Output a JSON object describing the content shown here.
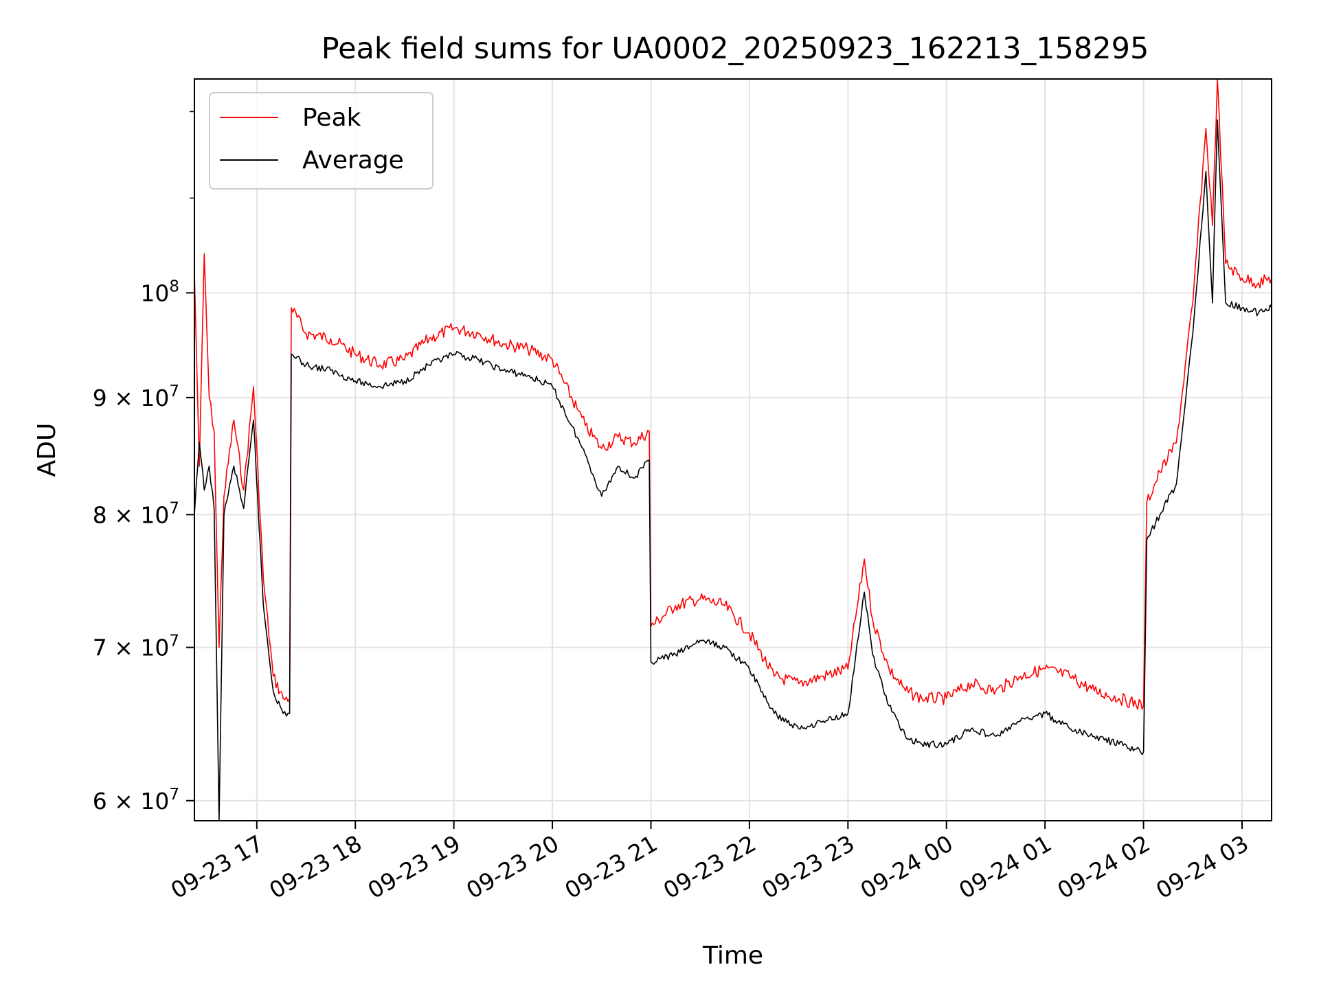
{
  "chart_data": {
    "type": "line",
    "title": "Peak field sums for UA0002_20250923_162213_158295",
    "xlabel": "Time",
    "ylabel": "ADU",
    "yscale": "log",
    "xlim": [
      "2025-09-23 16:22",
      "2025-09-24 03:18"
    ],
    "ylim": [
      58800000,
      124000000
    ],
    "grid": true,
    "legend_position": "upper-left",
    "x_ticks": [
      "09-23 17",
      "09-23 18",
      "09-23 19",
      "09-23 20",
      "09-23 21",
      "09-23 22",
      "09-23 23",
      "09-24 00",
      "09-24 01",
      "09-24 02",
      "09-24 03"
    ],
    "x_tick_values": [
      "2025-09-23 17:00",
      "2025-09-23 18:00",
      "2025-09-23 19:00",
      "2025-09-23 20:00",
      "2025-09-23 21:00",
      "2025-09-23 22:00",
      "2025-09-23 23:00",
      "2025-09-24 00:00",
      "2025-09-24 01:00",
      "2025-09-24 02:00",
      "2025-09-24 03:00"
    ],
    "y_ticks": [
      {
        "value": 60000000,
        "mant": "6",
        "sup": "7"
      },
      {
        "value": 70000000,
        "mant": "7",
        "sup": "7"
      },
      {
        "value": 80000000,
        "mant": "8",
        "sup": "7"
      },
      {
        "value": 90000000,
        "mant": "9",
        "sup": "7"
      },
      {
        "value": 100000000,
        "mant": "",
        "sup": "8"
      }
    ],
    "series": [
      {
        "name": "Peak",
        "color": "#ff0000",
        "x": [
          "2025-09-23 16:22",
          "2025-09-23 16:25",
          "2025-09-23 16:28",
          "2025-09-23 16:31",
          "2025-09-23 16:34",
          "2025-09-23 16:37",
          "2025-09-23 16:40",
          "2025-09-23 16:46",
          "2025-09-23 16:52",
          "2025-09-23 16:58",
          "2025-09-23 17:04",
          "2025-09-23 17:10",
          "2025-09-23 17:16",
          "2025-09-23 17:20",
          "2025-09-23 17:21",
          "2025-09-23 17:30",
          "2025-09-23 17:45",
          "2025-09-23 18:00",
          "2025-09-23 18:15",
          "2025-09-23 18:30",
          "2025-09-23 18:45",
          "2025-09-23 19:00",
          "2025-09-23 19:15",
          "2025-09-23 19:30",
          "2025-09-23 19:45",
          "2025-09-23 20:00",
          "2025-09-23 20:15",
          "2025-09-23 20:20",
          "2025-09-23 20:30",
          "2025-09-23 20:40",
          "2025-09-23 20:50",
          "2025-09-23 20:59",
          "2025-09-23 21:00",
          "2025-09-23 21:15",
          "2025-09-23 21:30",
          "2025-09-23 21:45",
          "2025-09-23 22:00",
          "2025-09-23 22:15",
          "2025-09-23 22:30",
          "2025-09-23 22:45",
          "2025-09-23 23:00",
          "2025-09-23 23:10",
          "2025-09-23 23:15",
          "2025-09-23 23:25",
          "2025-09-23 23:35",
          "2025-09-23 23:45",
          "2025-09-24 00:00",
          "2025-09-24 00:15",
          "2025-09-24 00:30",
          "2025-09-24 00:45",
          "2025-09-24 01:00",
          "2025-09-24 01:15",
          "2025-09-24 01:30",
          "2025-09-24 01:45",
          "2025-09-24 02:00",
          "2025-09-24 02:02",
          "2025-09-24 02:10",
          "2025-09-24 02:20",
          "2025-09-24 02:30",
          "2025-09-24 02:38",
          "2025-09-24 02:42",
          "2025-09-24 02:45",
          "2025-09-24 02:50",
          "2025-09-24 03:00",
          "2025-09-24 03:10",
          "2025-09-24 03:18"
        ],
        "y": [
          102000000,
          84000000,
          104000000,
          90000000,
          87000000,
          70000000,
          81500000,
          88000000,
          82000000,
          91000000,
          75000000,
          68000000,
          66500000,
          66500000,
          98500000,
          96000000,
          95500000,
          94000000,
          93000000,
          93500000,
          95500000,
          96500000,
          96000000,
          95000000,
          94500000,
          93500000,
          89000000,
          87500000,
          85500000,
          86500000,
          86000000,
          87000000,
          71500000,
          73000000,
          73500000,
          73000000,
          71000000,
          68000000,
          67500000,
          68000000,
          68500000,
          76500000,
          72000000,
          68500000,
          67000000,
          66500000,
          66500000,
          67500000,
          67000000,
          68000000,
          68500000,
          68000000,
          67000000,
          66500000,
          66000000,
          81000000,
          83500000,
          86000000,
          99000000,
          118000000,
          107000000,
          124000000,
          103000000,
          101500000,
          101000000,
          101500000
        ]
      },
      {
        "name": "Average",
        "color": "#000000",
        "x": [
          "2025-09-23 16:22",
          "2025-09-23 16:25",
          "2025-09-23 16:28",
          "2025-09-23 16:31",
          "2025-09-23 16:34",
          "2025-09-23 16:37",
          "2025-09-23 16:40",
          "2025-09-23 16:46",
          "2025-09-23 16:52",
          "2025-09-23 16:58",
          "2025-09-23 17:04",
          "2025-09-23 17:10",
          "2025-09-23 17:16",
          "2025-09-23 17:20",
          "2025-09-23 17:21",
          "2025-09-23 17:30",
          "2025-09-23 17:45",
          "2025-09-23 18:00",
          "2025-09-23 18:15",
          "2025-09-23 18:30",
          "2025-09-23 18:45",
          "2025-09-23 19:00",
          "2025-09-23 19:15",
          "2025-09-23 19:30",
          "2025-09-23 19:45",
          "2025-09-23 20:00",
          "2025-09-23 20:15",
          "2025-09-23 20:20",
          "2025-09-23 20:30",
          "2025-09-23 20:40",
          "2025-09-23 20:50",
          "2025-09-23 20:59",
          "2025-09-23 21:00",
          "2025-09-23 21:15",
          "2025-09-23 21:30",
          "2025-09-23 21:45",
          "2025-09-23 22:00",
          "2025-09-23 22:15",
          "2025-09-23 22:30",
          "2025-09-23 22:45",
          "2025-09-23 23:00",
          "2025-09-23 23:10",
          "2025-09-23 23:15",
          "2025-09-23 23:25",
          "2025-09-23 23:35",
          "2025-09-23 23:45",
          "2025-09-24 00:00",
          "2025-09-24 00:15",
          "2025-09-24 00:30",
          "2025-09-24 00:45",
          "2025-09-24 01:00",
          "2025-09-24 01:15",
          "2025-09-24 01:30",
          "2025-09-24 01:45",
          "2025-09-24 02:00",
          "2025-09-24 02:02",
          "2025-09-24 02:10",
          "2025-09-24 02:20",
          "2025-09-24 02:30",
          "2025-09-24 02:38",
          "2025-09-24 02:42",
          "2025-09-24 02:45",
          "2025-09-24 02:50",
          "2025-09-24 03:00",
          "2025-09-24 03:10",
          "2025-09-24 03:18"
        ],
        "y": [
          80000000,
          86000000,
          82000000,
          84000000,
          80500000,
          58800000,
          80000000,
          84000000,
          80500000,
          88000000,
          73000000,
          67000000,
          65500000,
          65500000,
          94000000,
          93000000,
          92500000,
          91500000,
          91000000,
          91500000,
          93000000,
          94000000,
          93500000,
          92500000,
          92000000,
          91000000,
          86500000,
          85000000,
          81500000,
          84000000,
          83000000,
          84500000,
          69000000,
          69500000,
          70500000,
          70000000,
          68500000,
          65500000,
          64500000,
          65000000,
          65500000,
          74000000,
          69500000,
          66000000,
          64000000,
          63500000,
          63500000,
          64500000,
          64000000,
          65000000,
          65500000,
          64500000,
          64000000,
          63500000,
          63000000,
          78000000,
          80000000,
          82500000,
          96000000,
          113000000,
          99000000,
          119000000,
          99000000,
          98500000,
          98000000,
          98500000
        ]
      }
    ]
  }
}
